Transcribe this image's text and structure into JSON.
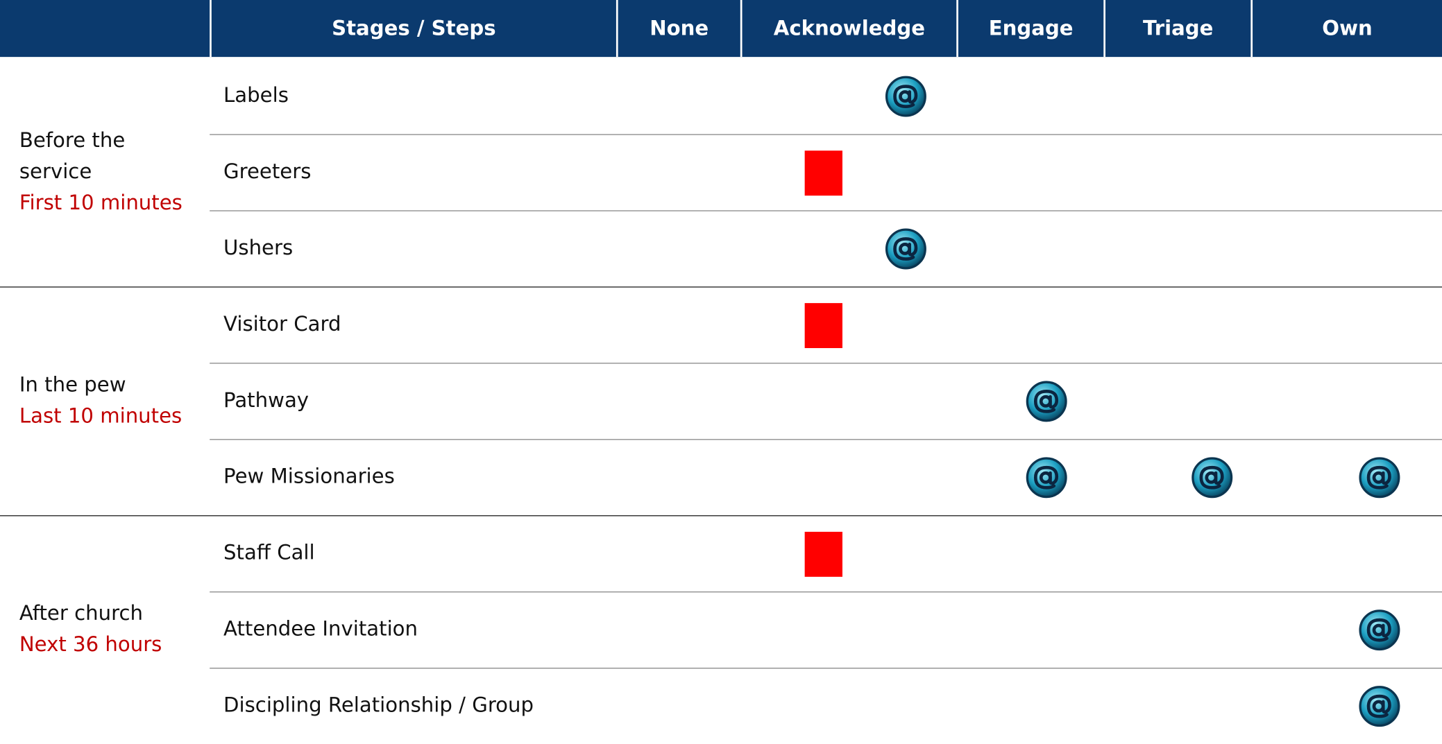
{
  "header": {
    "columns": [
      "Stages / Steps",
      "None",
      "Acknowledge",
      "Engage",
      "Triage",
      "Own"
    ]
  },
  "groups": [
    {
      "label": "Before the service",
      "sublabel": "First 10 minutes",
      "steps": [
        "Labels",
        "Greeters",
        "Ushers"
      ]
    },
    {
      "label": "In the pew",
      "sublabel": "Last 10 minutes",
      "steps": [
        "Visitor Card",
        "Pathway",
        "Pew Missionaries"
      ]
    },
    {
      "label": "After church",
      "sublabel": "Next 36 hours",
      "steps": [
        "Staff Call",
        "Attendee Invitation",
        "Discipling Relationship / Group"
      ]
    }
  ]
}
